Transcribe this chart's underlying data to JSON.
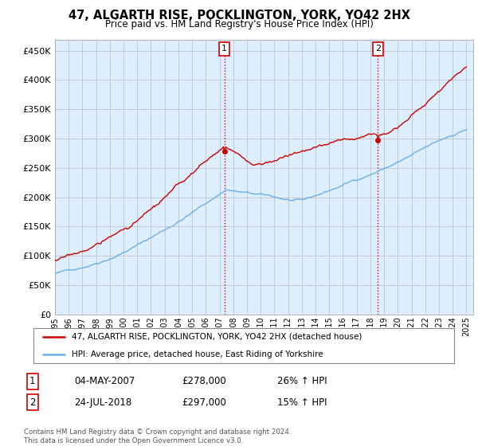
{
  "title": "47, ALGARTH RISE, POCKLINGTON, YORK, YO42 2HX",
  "subtitle": "Price paid vs. HM Land Registry's House Price Index (HPI)",
  "ylim": [
    0,
    470000
  ],
  "yticks": [
    0,
    50000,
    100000,
    150000,
    200000,
    250000,
    300000,
    350000,
    400000,
    450000
  ],
  "ytick_labels": [
    "£0",
    "£50K",
    "£100K",
    "£150K",
    "£200K",
    "£250K",
    "£300K",
    "£350K",
    "£400K",
    "£450K"
  ],
  "hpi_color": "#6ab0e8",
  "price_color": "#cc0000",
  "marker_color": "#cc0000",
  "annotation_color": "#cc0000",
  "sale1_year": 2007.35,
  "sale1_price": 278000,
  "sale2_year": 2018.55,
  "sale2_price": 297000,
  "legend_line1": "47, ALGARTH RISE, POCKLINGTON, YORK, YO42 2HX (detached house)",
  "legend_line2": "HPI: Average price, detached house, East Riding of Yorkshire",
  "table_row1": [
    "1",
    "04-MAY-2007",
    "£278,000",
    "26% ↑ HPI"
  ],
  "table_row2": [
    "2",
    "24-JUL-2018",
    "£297,000",
    "15% ↑ HPI"
  ],
  "footer": "Contains HM Land Registry data © Crown copyright and database right 2024.\nThis data is licensed under the Open Government Licence v3.0.",
  "background_color": "#ffffff",
  "plot_bg_color": "#ddeeff"
}
